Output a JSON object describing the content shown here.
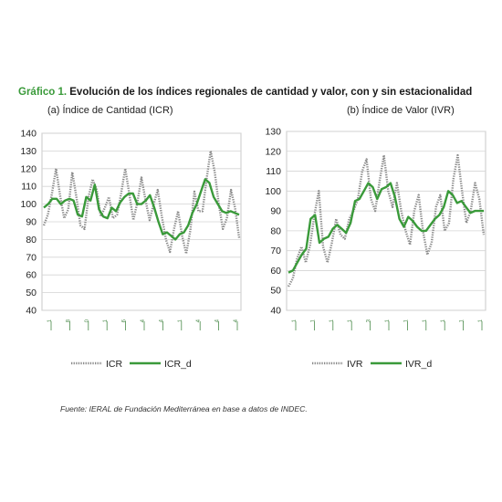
{
  "figure": {
    "label": "Gráfico 1.",
    "title": "Evolución de los índices regionales de cantidad y valor, con y sin estacionalidad",
    "source": "Fuente: IERAL de Fundación Mediterránea en base a datos de INDEC."
  },
  "colors": {
    "raw_series": "#8a8a8a",
    "desaturated_series": "#3a9a3a",
    "grid": "#d4d4d4",
    "title_label": "#3a9a3a"
  },
  "chart_data": [
    {
      "type": "line",
      "title": "(a) Índice de Cantidad (ICR)",
      "ylim": [
        40,
        140
      ],
      "yticks": [
        40,
        50,
        60,
        70,
        80,
        90,
        100,
        110,
        120,
        130,
        140
      ],
      "xtick_labels": [
        "1",
        "8",
        "0",
        "1",
        "6",
        "4",
        "4",
        "1",
        "4",
        "4",
        "4"
      ],
      "grid": true,
      "legend_position": "bottom",
      "series": [
        {
          "name": "ICR",
          "style": "dotted",
          "values": [
            88,
            94,
            106,
            120,
            105,
            92,
            97,
            118,
            104,
            88,
            86,
            104,
            114,
            108,
            93,
            98,
            104,
            92,
            94,
            106,
            120,
            106,
            91,
            101,
            115,
            102,
            91,
            100,
            108,
            93,
            80,
            73,
            86,
            96,
            82,
            72,
            85,
            107,
            96,
            96,
            114,
            130,
            118,
            100,
            86,
            92,
            108,
            98,
            81
          ]
        },
        {
          "name": "ICR_d",
          "style": "solid",
          "values": [
            98,
            100,
            103,
            103,
            100,
            102,
            103,
            102,
            94,
            93,
            104,
            102,
            111,
            97,
            93,
            92,
            98,
            96,
            101,
            104,
            106,
            106,
            100,
            100,
            102,
            105,
            98,
            90,
            83,
            84,
            82,
            80,
            83,
            84,
            88,
            95,
            100,
            107,
            114,
            112,
            104,
            100,
            96,
            95,
            96,
            95,
            94
          ]
        }
      ]
    },
    {
      "type": "line",
      "title": "(b) Índice de Valor (IVR)",
      "ylim": [
        40,
        130
      ],
      "yticks": [
        40,
        50,
        60,
        70,
        80,
        90,
        100,
        110,
        120,
        130
      ],
      "xtick_labels": [
        "1",
        "1",
        "1",
        "1",
        "3",
        "1",
        "1",
        "1",
        "1",
        "1",
        "1"
      ],
      "grid": true,
      "legend_position": "bottom",
      "series": [
        {
          "name": "IVR",
          "style": "dotted",
          "values": [
            52,
            56,
            66,
            72,
            64,
            73,
            88,
            100,
            72,
            64,
            74,
            86,
            78,
            76,
            86,
            90,
            96,
            110,
            116,
            96,
            90,
            105,
            118,
            100,
            92,
            104,
            90,
            80,
            73,
            90,
            98,
            80,
            68,
            74,
            92,
            98,
            80,
            84,
            106,
            118,
            100,
            84,
            90,
            104,
            96,
            78
          ]
        },
        {
          "name": "IVR_d",
          "style": "solid",
          "values": [
            59,
            60,
            64,
            68,
            71,
            86,
            88,
            74,
            76,
            77,
            81,
            83,
            81,
            79,
            84,
            95,
            96,
            100,
            104,
            102,
            96,
            101,
            102,
            104,
            97,
            86,
            82,
            87,
            85,
            82,
            80,
            80,
            83,
            86,
            88,
            92,
            100,
            98,
            94,
            95,
            92,
            89,
            90,
            90,
            90
          ]
        }
      ]
    }
  ]
}
